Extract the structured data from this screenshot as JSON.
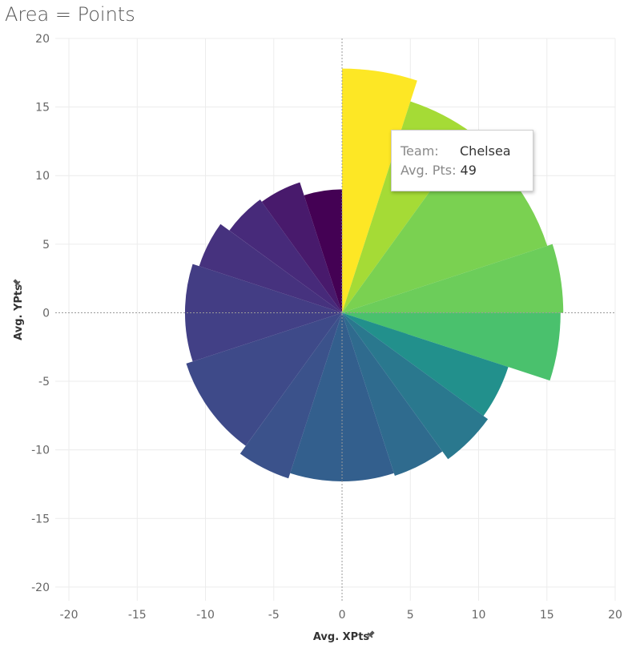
{
  "chart_data": {
    "type": "polar-area",
    "title": "Area = Points",
    "xlabel": "Avg. XPts",
    "ylabel": "Avg. YPts",
    "xlim": [
      -21,
      20
    ],
    "ylim": [
      -21,
      20
    ],
    "x_ticks": [
      -20,
      -15,
      -10,
      -5,
      0,
      5,
      10,
      15,
      20
    ],
    "y_ticks": [
      20,
      15,
      10,
      5,
      0,
      -5,
      -10,
      -15,
      -20
    ],
    "grid": true,
    "segments": [
      {
        "start_deg": 0,
        "end_deg": 18,
        "radius": 17.8,
        "color": "#fde725"
      },
      {
        "start_deg": 18,
        "end_deg": 36,
        "radius": 16.2,
        "color": "#a5db36"
      },
      {
        "start_deg": 36,
        "end_deg": 72,
        "radius": 15.8,
        "color": "#7ad151"
      },
      {
        "start_deg": 72,
        "end_deg": 90,
        "radius": 16.2,
        "color": "#6ccd5a"
      },
      {
        "start_deg": 90,
        "end_deg": 108,
        "radius": 16.0,
        "color": "#4ac16d"
      },
      {
        "start_deg": 108,
        "end_deg": 126,
        "radius": 12.8,
        "color": "#22908c"
      },
      {
        "start_deg": 126,
        "end_deg": 144,
        "radius": 13.2,
        "color": "#2a788e"
      },
      {
        "start_deg": 144,
        "end_deg": 162,
        "radius": 12.5,
        "color": "#2f6b8e"
      },
      {
        "start_deg": 162,
        "end_deg": 198,
        "radius": 12.3,
        "color": "#335f8d"
      },
      {
        "start_deg": 198,
        "end_deg": 216,
        "radius": 12.7,
        "color": "#3b528b"
      },
      {
        "start_deg": 216,
        "end_deg": 252,
        "radius": 12.0,
        "color": "#3e4a89"
      },
      {
        "start_deg": 252,
        "end_deg": 270,
        "radius": 11.5,
        "color": "#424086"
      },
      {
        "start_deg": 270,
        "end_deg": 288,
        "radius": 11.5,
        "color": "#433d84"
      },
      {
        "start_deg": 288,
        "end_deg": 306,
        "radius": 11.0,
        "color": "#46327e"
      },
      {
        "start_deg": 306,
        "end_deg": 324,
        "radius": 10.2,
        "color": "#472a7a"
      },
      {
        "start_deg": 324,
        "end_deg": 342,
        "radius": 10.0,
        "color": "#481a6c"
      },
      {
        "start_deg": 342,
        "end_deg": 360,
        "radius": 9.0,
        "color": "#440154"
      }
    ]
  },
  "tooltip": {
    "team_key": "Team:",
    "team_value": "Chelsea",
    "pts_key": "Avg. Pts:",
    "pts_value": "49"
  },
  "pin_icon": "pin-icon"
}
